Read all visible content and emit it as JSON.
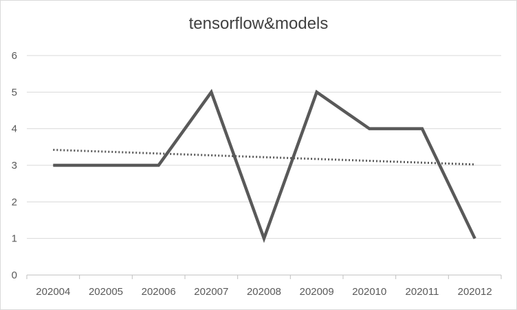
{
  "chart_data": {
    "type": "line",
    "title": "tensorflow&models",
    "xlabel": "",
    "ylabel": "",
    "categories": [
      "202004",
      "202005",
      "202006",
      "202007",
      "202008",
      "202009",
      "202010",
      "202011",
      "202012"
    ],
    "series": [
      {
        "values": [
          3,
          3,
          3,
          5,
          1,
          5,
          4,
          4,
          1
        ],
        "color": "#595959",
        "style": "solid"
      }
    ],
    "trendline": {
      "type": "linear",
      "style": "dotted",
      "color": "#595959"
    },
    "ylim": [
      0,
      6
    ],
    "yticks": [
      0,
      1,
      2,
      3,
      4,
      5,
      6
    ],
    "grid": "horizontal",
    "legend": "none"
  }
}
